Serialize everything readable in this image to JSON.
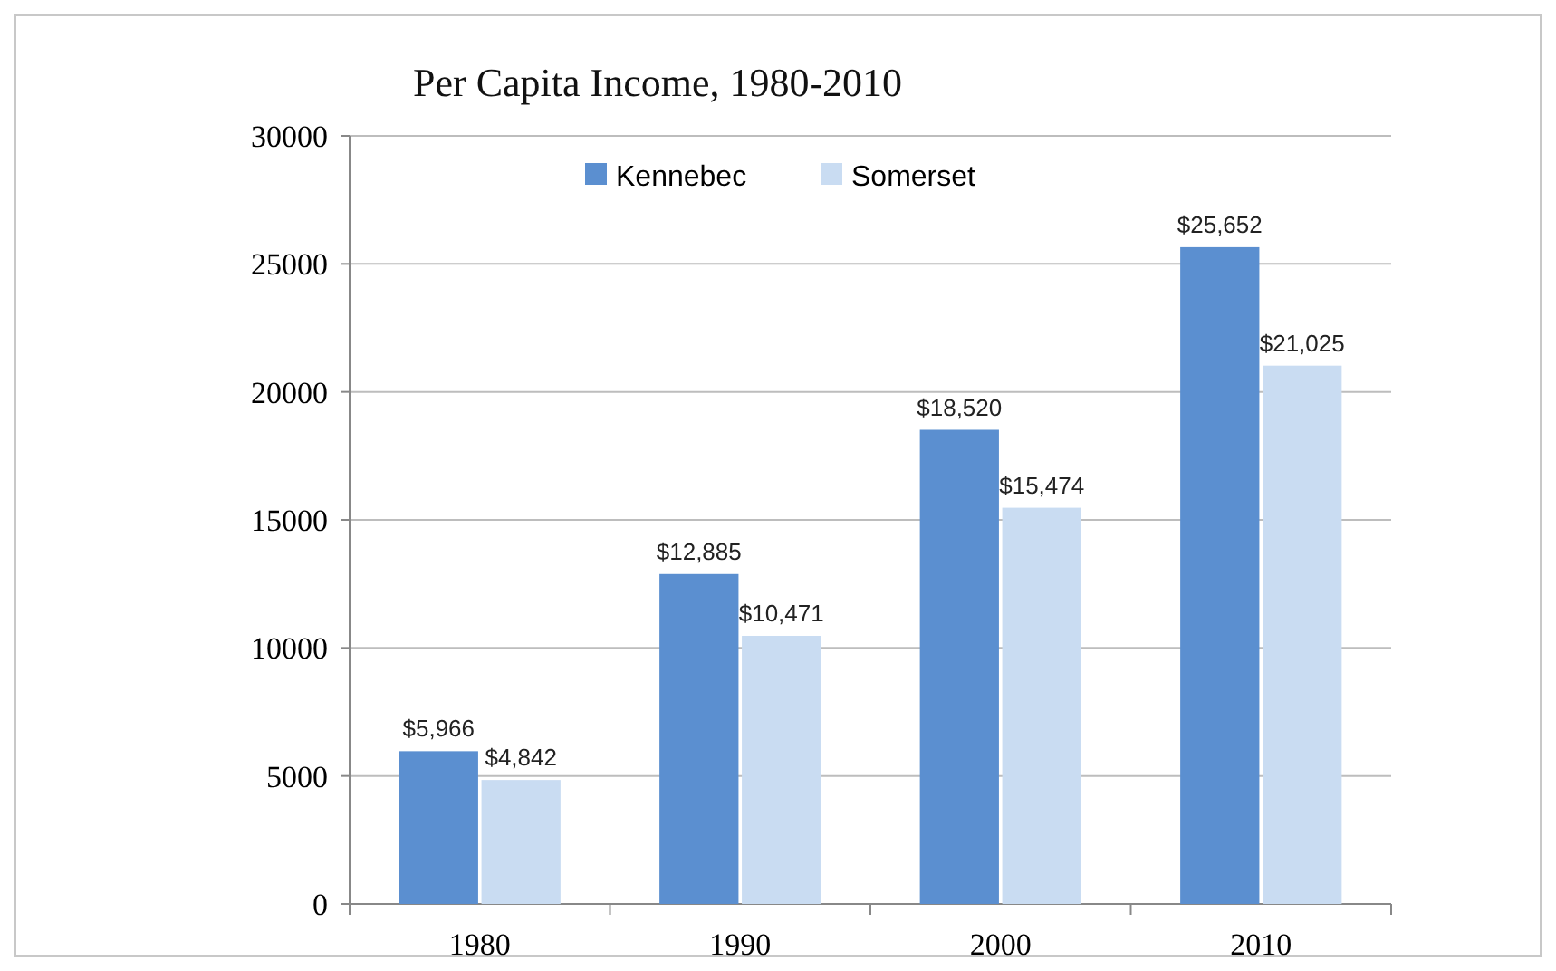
{
  "chart_data": {
    "type": "bar",
    "title": "Per Capita Income, 1980-2010",
    "categories": [
      "1980",
      "1990",
      "2000",
      "2010"
    ],
    "series": [
      {
        "name": "Kennebec",
        "color": "#5b8fd0",
        "values": [
          5966,
          12885,
          18520,
          25652
        ],
        "value_labels": [
          "$5,966",
          "$12,885",
          "$18,520",
          "$25,652"
        ]
      },
      {
        "name": "Somerset",
        "color": "#c9dcf2",
        "values": [
          4842,
          10471,
          15474,
          21025
        ],
        "value_labels": [
          "$4,842",
          "$10,471",
          "$15,474",
          "$21,025"
        ]
      }
    ],
    "ylim": [
      0,
      30000
    ],
    "yticks": [
      0,
      5000,
      10000,
      15000,
      20000,
      25000,
      30000
    ],
    "grid": "y",
    "legend": "top"
  }
}
